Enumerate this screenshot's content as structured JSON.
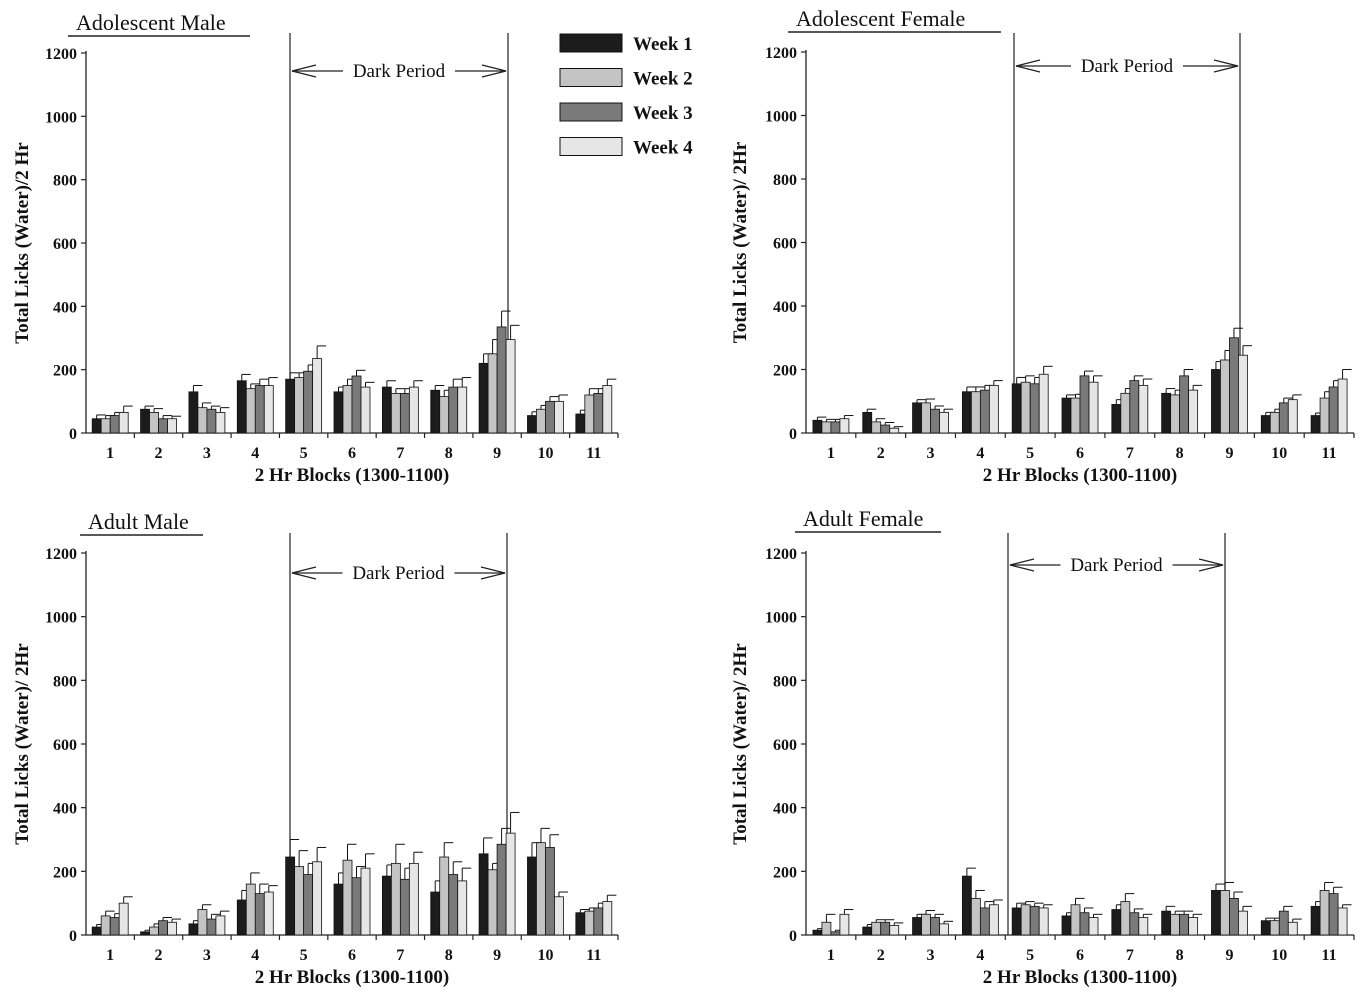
{
  "legend": [
    {
      "label": "Week 1",
      "color": "#1c1c1c"
    },
    {
      "label": "Week 2",
      "color": "#c4c4c4"
    },
    {
      "label": "Week 3",
      "color": "#7a7a7a"
    },
    {
      "label": "Week 4",
      "color": "#e6e6e6"
    }
  ],
  "dark_period_label": "Dark Period",
  "chart_data": [
    {
      "type": "bar",
      "title": "Adolescent Male",
      "xlabel": "2 Hr Blocks (1300-1100)",
      "ylabel": "Total Licks (Water)/2 Hr",
      "ylim": [
        0,
        1200
      ],
      "yticks": [
        "0",
        "200",
        "400",
        "600",
        "800",
        "1000",
        "1200"
      ],
      "categories": [
        "1",
        "2",
        "3",
        "4",
        "5",
        "6",
        "7",
        "8",
        "9",
        "10",
        "11"
      ],
      "dark_period": {
        "from_block": 5,
        "to_block": 9
      },
      "series": [
        {
          "name": "Week 1",
          "values": [
            45,
            75,
            130,
            165,
            170,
            130,
            145,
            135,
            220,
            55,
            60
          ],
          "errors": [
            12,
            10,
            20,
            20,
            20,
            15,
            20,
            15,
            30,
            12,
            12
          ]
        },
        {
          "name": "Week 2",
          "values": [
            45,
            65,
            80,
            140,
            175,
            150,
            125,
            115,
            250,
            75,
            120
          ],
          "errors": [
            10,
            12,
            15,
            15,
            15,
            20,
            15,
            20,
            45,
            12,
            20
          ]
        },
        {
          "name": "Week 3",
          "values": [
            55,
            45,
            75,
            150,
            195,
            180,
            125,
            145,
            335,
            100,
            125
          ],
          "errors": [
            10,
            10,
            10,
            20,
            20,
            18,
            15,
            25,
            50,
            15,
            15
          ]
        },
        {
          "name": "Week 4",
          "values": [
            65,
            45,
            65,
            150,
            235,
            145,
            145,
            145,
            295,
            100,
            150
          ],
          "errors": [
            20,
            8,
            15,
            25,
            40,
            15,
            20,
            30,
            45,
            20,
            20
          ]
        }
      ]
    },
    {
      "type": "bar",
      "title": "Adolescent Female",
      "xlabel": "2 Hr Blocks (1300-1100)",
      "ylabel": "Total Licks (Water)/ 2Hr",
      "ylim": [
        0,
        1200
      ],
      "yticks": [
        "0",
        "200",
        "400",
        "600",
        "800",
        "1000",
        "1200"
      ],
      "categories": [
        "1",
        "2",
        "3",
        "4",
        "5",
        "6",
        "7",
        "8",
        "9",
        "10",
        "11"
      ],
      "dark_period": {
        "from_block": 5,
        "to_block": 9
      },
      "series": [
        {
          "name": "Week 1",
          "values": [
            40,
            65,
            95,
            130,
            155,
            110,
            90,
            125,
            200,
            55,
            55
          ],
          "errors": [
            10,
            10,
            10,
            15,
            20,
            10,
            15,
            15,
            25,
            10,
            8
          ]
        },
        {
          "name": "Week 2",
          "values": [
            35,
            35,
            95,
            130,
            160,
            110,
            125,
            120,
            230,
            65,
            110
          ],
          "errors": [
            8,
            10,
            12,
            15,
            20,
            12,
            15,
            15,
            30,
            10,
            20
          ]
        },
        {
          "name": "Week 3",
          "values": [
            35,
            25,
            75,
            135,
            155,
            180,
            165,
            180,
            300,
            95,
            145
          ],
          "errors": [
            8,
            8,
            10,
            15,
            20,
            15,
            15,
            20,
            30,
            15,
            20
          ]
        },
        {
          "name": "Week 4",
          "values": [
            45,
            15,
            65,
            150,
            185,
            160,
            150,
            135,
            245,
            105,
            170
          ],
          "errors": [
            10,
            5,
            10,
            15,
            25,
            20,
            20,
            15,
            30,
            15,
            30
          ]
        }
      ]
    },
    {
      "type": "bar",
      "title": "Adult Male",
      "xlabel": "2 Hr Blocks (1300-1100)",
      "ylabel": "Total Licks (Water)/ 2Hr",
      "ylim": [
        0,
        1200
      ],
      "yticks": [
        "0",
        "200",
        "400",
        "600",
        "800",
        "1000",
        "1200"
      ],
      "categories": [
        "1",
        "2",
        "3",
        "4",
        "5",
        "6",
        "7",
        "8",
        "9",
        "10",
        "11"
      ],
      "dark_period": {
        "from_block": 5,
        "to_block": 9
      },
      "series": [
        {
          "name": "Week 1",
          "values": [
            25,
            10,
            35,
            110,
            245,
            160,
            185,
            135,
            255,
            245,
            70
          ],
          "errors": [
            8,
            5,
            10,
            30,
            55,
            35,
            35,
            35,
            50,
            45,
            10
          ]
        },
        {
          "name": "Week 2",
          "values": [
            60,
            25,
            80,
            160,
            215,
            235,
            225,
            245,
            205,
            290,
            75
          ],
          "errors": [
            15,
            10,
            15,
            35,
            50,
            50,
            60,
            45,
            20,
            45,
            10
          ]
        },
        {
          "name": "Week 3",
          "values": [
            55,
            45,
            50,
            130,
            190,
            180,
            175,
            190,
            285,
            275,
            85
          ],
          "errors": [
            12,
            10,
            15,
            30,
            35,
            35,
            35,
            40,
            50,
            40,
            15
          ]
        },
        {
          "name": "Week 4",
          "values": [
            100,
            40,
            60,
            135,
            230,
            210,
            225,
            170,
            320,
            120,
            105
          ],
          "errors": [
            20,
            10,
            15,
            20,
            45,
            45,
            35,
            40,
            65,
            15,
            20
          ]
        }
      ]
    },
    {
      "type": "bar",
      "title": "Adult Female",
      "xlabel": "2 Hr Blocks (1300-1100)",
      "ylabel": "Total Licks (Water)/ 2Hr",
      "ylim": [
        0,
        1200
      ],
      "yticks": [
        "0",
        "200",
        "400",
        "600",
        "800",
        "1000",
        "1200"
      ],
      "categories": [
        "1",
        "2",
        "3",
        "4",
        "5",
        "6",
        "7",
        "8",
        "9",
        "10",
        "11"
      ],
      "dark_period": {
        "from_block": 5,
        "to_block": 9
      },
      "series": [
        {
          "name": "Week 1",
          "values": [
            15,
            25,
            55,
            185,
            85,
            60,
            80,
            75,
            140,
            45,
            90
          ],
          "errors": [
            5,
            8,
            10,
            25,
            15,
            10,
            15,
            15,
            20,
            8,
            15
          ]
        },
        {
          "name": "Week 2",
          "values": [
            40,
            40,
            65,
            115,
            95,
            95,
            105,
            65,
            140,
            45,
            140
          ],
          "errors": [
            25,
            8,
            12,
            25,
            10,
            20,
            25,
            10,
            25,
            8,
            25
          ]
        },
        {
          "name": "Week 3",
          "values": [
            10,
            40,
            55,
            85,
            90,
            70,
            70,
            65,
            115,
            75,
            130
          ],
          "errors": [
            5,
            8,
            10,
            20,
            10,
            15,
            12,
            10,
            20,
            15,
            20
          ]
        },
        {
          "name": "Week 4",
          "values": [
            65,
            30,
            35,
            95,
            85,
            55,
            55,
            55,
            75,
            40,
            85
          ],
          "errors": [
            15,
            8,
            8,
            15,
            10,
            10,
            10,
            10,
            15,
            10,
            10
          ]
        }
      ]
    }
  ]
}
